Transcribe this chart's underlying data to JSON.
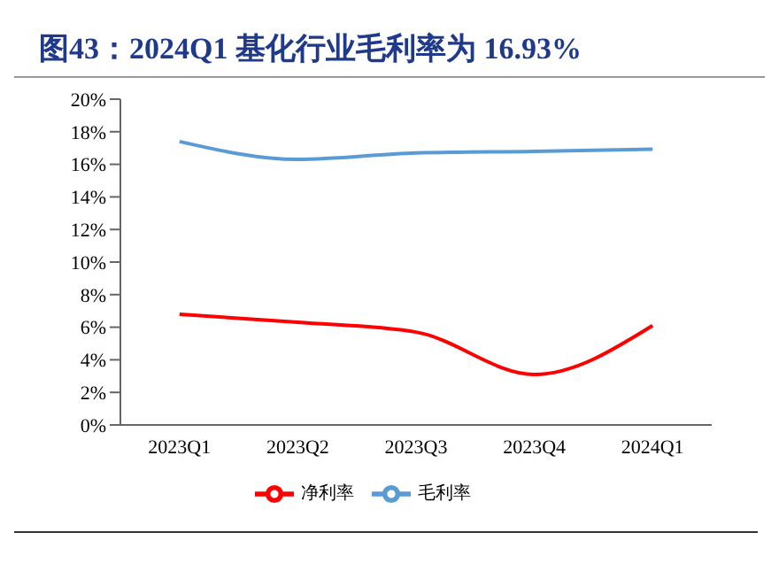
{
  "chart_data": {
    "type": "line",
    "title": "图43：2024Q1 基化行业毛利率为 16.93%",
    "categories": [
      "2023Q1",
      "2023Q2",
      "2023Q3",
      "2023Q4",
      "2024Q1"
    ],
    "series": [
      {
        "name": "毛利率",
        "color": "#5b9bd5",
        "values": [
          17.4,
          16.3,
          16.7,
          16.8,
          16.93
        ]
      },
      {
        "name": "净利率",
        "color": "#ff0000",
        "values": [
          6.8,
          6.3,
          5.7,
          3.1,
          6.1
        ]
      }
    ],
    "ylim": [
      0,
      20
    ],
    "yticks": [
      {
        "value": 0,
        "label": "0%"
      },
      {
        "value": 2,
        "label": "2%"
      },
      {
        "value": 4,
        "label": "4%"
      },
      {
        "value": 6,
        "label": "6%"
      },
      {
        "value": 8,
        "label": "8%"
      },
      {
        "value": 10,
        "label": "10%"
      },
      {
        "value": 12,
        "label": "12%"
      },
      {
        "value": 14,
        "label": "14%"
      },
      {
        "value": 16,
        "label": "16%"
      },
      {
        "value": 18,
        "label": "18%"
      },
      {
        "value": 20,
        "label": "20%"
      }
    ],
    "grid": false,
    "legend": "bottom",
    "marker": "none",
    "line_style": "solid"
  }
}
